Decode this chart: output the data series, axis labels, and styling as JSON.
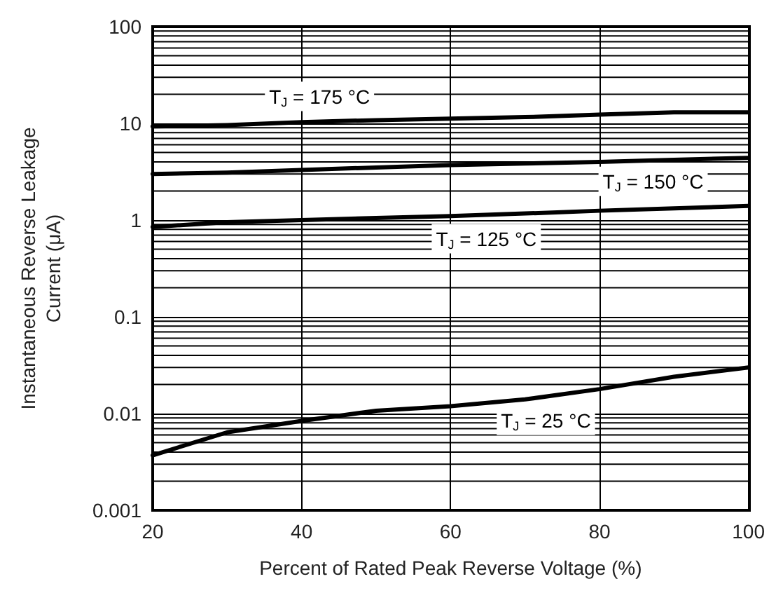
{
  "chart_data": {
    "type": "line",
    "xlabel": "Percent of Rated Peak Reverse Voltage (%)",
    "ylabel": "Instantaneous Reverse Leakage\nCurrent (μA)",
    "x": [
      20,
      30,
      40,
      50,
      60,
      70,
      80,
      90,
      100
    ],
    "series": [
      {
        "name": "T$_{J}$ = 175 °C",
        "color": "#000000",
        "values": [
          9.3,
          9.6,
          10.3,
          10.8,
          11.2,
          11.6,
          12.3,
          13,
          13
        ]
      },
      {
        "name": "T$_{J}$ = 150 °C",
        "color": "#000000",
        "values": [
          3.0,
          3.1,
          3.3,
          3.5,
          3.7,
          3.85,
          4.0,
          4.2,
          4.4
        ]
      },
      {
        "name": "T$_{J}$ = 125 °C",
        "color": "#000000",
        "values": [
          0.85,
          0.95,
          1.0,
          1.05,
          1.1,
          1.17,
          1.25,
          1.32,
          1.4
        ]
      },
      {
        "name": "T$_{J}$ = 25 °C",
        "color": "#000000",
        "values": [
          0.0037,
          0.0064,
          0.0084,
          0.0107,
          0.0119,
          0.014,
          0.0179,
          0.024,
          0.03
        ]
      }
    ],
    "xlim": [
      20,
      100
    ],
    "xticks": [
      20,
      40,
      60,
      80,
      100
    ],
    "ylim": [
      0.001,
      100
    ],
    "yticks": [
      0.001,
      0.01,
      0.1,
      1,
      10,
      100
    ],
    "log": "y",
    "grid": true,
    "marker": "none",
    "line_style": "solid"
  }
}
